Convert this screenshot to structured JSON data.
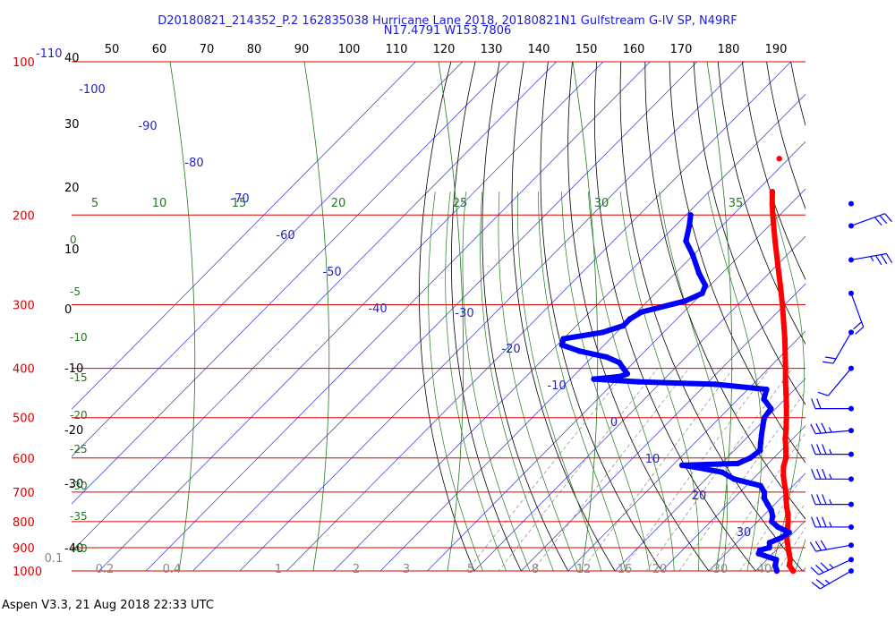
{
  "header": {
    "title_line1": "D20180821_214352_P.2 162835038 Hurricane Lane 2018, 20180821N1 Gulfstream G-IV SP, N49RF",
    "title_line2": "N17.4791 W153.7806"
  },
  "footer": {
    "text": "Aspen V3.3, 21 Aug 2018  22:33 UTC"
  },
  "chart_data": {
    "type": "line",
    "subtype": "skew-T log-P thermodynamic diagram",
    "title": "D20180821_214352_P.2 162835038 Hurricane Lane 2018, 20180821N1 Gulfstream G-IV SP, N49RF",
    "subtitle": "N17.4791 W153.7806",
    "pressure_labels": [
      "100",
      "200",
      "300",
      "400",
      "500",
      "600",
      "700",
      "800",
      "900",
      "1000"
    ],
    "top_temperature_ticks": [
      "50",
      "60",
      "70",
      "80",
      "90",
      "100",
      "110",
      "120",
      "130",
      "140",
      "150",
      "160",
      "170",
      "180",
      "190"
    ],
    "left_temperature_ticks": [
      "40",
      "30",
      "20",
      "10",
      "0",
      "-10",
      "-20",
      "-30",
      "-40"
    ],
    "left_blue_labels": [
      "-110"
    ],
    "isotherm_labels": [
      "-100",
      "-90",
      "-80",
      "-70",
      "-60",
      "-50",
      "-40",
      "-30",
      "-20",
      "-10",
      "0",
      "10",
      "20",
      "30"
    ],
    "mixing_ratio_labels": [
      "0.1",
      "0.2",
      "0.4",
      "1",
      "2",
      "3",
      "5",
      "8",
      "12",
      "16",
      "20",
      "30",
      "40"
    ],
    "theta_e_labels": [
      "5",
      "10",
      "15",
      "20",
      "25",
      "30",
      "35"
    ],
    "theta_left_labels": [
      "0",
      "-5",
      "-10",
      "-15",
      "-20",
      "-25",
      "-30",
      "-35",
      "-40"
    ],
    "series": [
      {
        "name": "",
        "color": "#ff0000",
        "quantity": "temperature",
        "points": [
          {
            "p": 1000,
            "t": 28.0
          },
          {
            "p": 975,
            "t": 26.0
          },
          {
            "p": 950,
            "t": 25.0
          },
          {
            "p": 925,
            "t": 23.5
          },
          {
            "p": 900,
            "t": 22.0
          },
          {
            "p": 875,
            "t": 20.5
          },
          {
            "p": 850,
            "t": 19.0
          },
          {
            "p": 825,
            "t": 17.8
          },
          {
            "p": 800,
            "t": 16.5
          },
          {
            "p": 775,
            "t": 15.0
          },
          {
            "p": 750,
            "t": 13.2
          },
          {
            "p": 725,
            "t": 11.5
          },
          {
            "p": 700,
            "t": 9.8
          },
          {
            "p": 675,
            "t": 7.8
          },
          {
            "p": 650,
            "t": 5.8
          },
          {
            "p": 625,
            "t": 4.0
          },
          {
            "p": 600,
            "t": 2.6
          },
          {
            "p": 575,
            "t": 0.6
          },
          {
            "p": 550,
            "t": -1.6
          },
          {
            "p": 525,
            "t": -3.6
          },
          {
            "p": 500,
            "t": -5.8
          },
          {
            "p": 475,
            "t": -8.2
          },
          {
            "p": 450,
            "t": -10.8
          },
          {
            "p": 425,
            "t": -13.6
          },
          {
            "p": 400,
            "t": -16.4
          },
          {
            "p": 375,
            "t": -19.5
          },
          {
            "p": 350,
            "t": -22.8
          },
          {
            "p": 325,
            "t": -26.5
          },
          {
            "p": 300,
            "t": -30.5
          },
          {
            "p": 275,
            "t": -35.0
          },
          {
            "p": 250,
            "t": -40.0
          },
          {
            "p": 225,
            "t": -45.5
          },
          {
            "p": 200,
            "t": -51.5
          },
          {
            "p": 190,
            "t": -54.0
          },
          {
            "p": 180,
            "t": -56.5
          }
        ],
        "isolated_points": [
          {
            "p": 155,
            "t": -62.0
          }
        ]
      },
      {
        "name": "",
        "color": "#0000ff",
        "quantity": "dew point",
        "points": [
          {
            "p": 1000,
            "t": 24.5
          },
          {
            "p": 975,
            "t": 23.0
          },
          {
            "p": 950,
            "t": 22.0
          },
          {
            "p": 925,
            "t": 17.0
          },
          {
            "p": 910,
            "t": 16.5
          },
          {
            "p": 900,
            "t": 18.0
          },
          {
            "p": 880,
            "t": 17.0
          },
          {
            "p": 860,
            "t": 18.5
          },
          {
            "p": 840,
            "t": 19.0
          },
          {
            "p": 820,
            "t": 15.5
          },
          {
            "p": 800,
            "t": 13.0
          },
          {
            "p": 780,
            "t": 12.0
          },
          {
            "p": 760,
            "t": 10.5
          },
          {
            "p": 740,
            "t": 8.5
          },
          {
            "p": 720,
            "t": 6.5
          },
          {
            "p": 700,
            "t": 5.2
          },
          {
            "p": 680,
            "t": 3.0
          },
          {
            "p": 660,
            "t": -4.0
          },
          {
            "p": 640,
            "t": -8.0
          },
          {
            "p": 625,
            "t": -15.0
          },
          {
            "p": 620,
            "t": -18.0
          },
          {
            "p": 615,
            "t": -6.5
          },
          {
            "p": 600,
            "t": -5.0
          },
          {
            "p": 580,
            "t": -4.5
          },
          {
            "p": 560,
            "t": -6.0
          },
          {
            "p": 540,
            "t": -7.5
          },
          {
            "p": 520,
            "t": -9.0
          },
          {
            "p": 500,
            "t": -10.5
          },
          {
            "p": 480,
            "t": -11.0
          },
          {
            "p": 460,
            "t": -14.5
          },
          {
            "p": 440,
            "t": -16.0
          },
          {
            "p": 430,
            "t": -28.0
          },
          {
            "p": 425,
            "t": -45.0
          },
          {
            "p": 420,
            "t": -55.0
          },
          {
            "p": 415,
            "t": -50.0
          },
          {
            "p": 410,
            "t": -49.0
          },
          {
            "p": 400,
            "t": -51.0
          },
          {
            "p": 390,
            "t": -53.0
          },
          {
            "p": 380,
            "t": -57.0
          },
          {
            "p": 370,
            "t": -64.0
          },
          {
            "p": 360,
            "t": -69.0
          },
          {
            "p": 350,
            "t": -70.0
          },
          {
            "p": 340,
            "t": -63.0
          },
          {
            "p": 330,
            "t": -60.0
          },
          {
            "p": 320,
            "t": -60.0
          },
          {
            "p": 310,
            "t": -59.0
          },
          {
            "p": 295,
            "t": -52.0
          },
          {
            "p": 285,
            "t": -50.0
          },
          {
            "p": 275,
            "t": -51.0
          },
          {
            "p": 260,
            "t": -55.0
          },
          {
            "p": 240,
            "t": -60.0
          },
          {
            "p": 225,
            "t": -64.5
          },
          {
            "p": 210,
            "t": -67.0
          },
          {
            "p": 200,
            "t": -69.0
          }
        ]
      }
    ],
    "wind_profile": {
      "color": "#0000ff",
      "barbs": [
        {
          "p": 190,
          "dir": 95,
          "kts": 0
        },
        {
          "p": 210,
          "dir": 70,
          "kts": 30
        },
        {
          "p": 245,
          "dir": 80,
          "kts": 25
        },
        {
          "p": 285,
          "dir": 160,
          "kts": 20
        },
        {
          "p": 340,
          "dir": 210,
          "kts": 20
        },
        {
          "p": 400,
          "dir": 220,
          "kts": 10
        },
        {
          "p": 480,
          "dir": 270,
          "kts": 20
        },
        {
          "p": 530,
          "dir": 265,
          "kts": 25
        },
        {
          "p": 590,
          "dir": 270,
          "kts": 25
        },
        {
          "p": 660,
          "dir": 270,
          "kts": 25
        },
        {
          "p": 740,
          "dir": 270,
          "kts": 25
        },
        {
          "p": 820,
          "dir": 270,
          "kts": 25
        },
        {
          "p": 890,
          "dir": 260,
          "kts": 30
        },
        {
          "p": 950,
          "dir": 245,
          "kts": 25
        },
        {
          "p": 1000,
          "dir": 240,
          "kts": 15
        }
      ]
    },
    "grid": true,
    "legend": "none"
  }
}
